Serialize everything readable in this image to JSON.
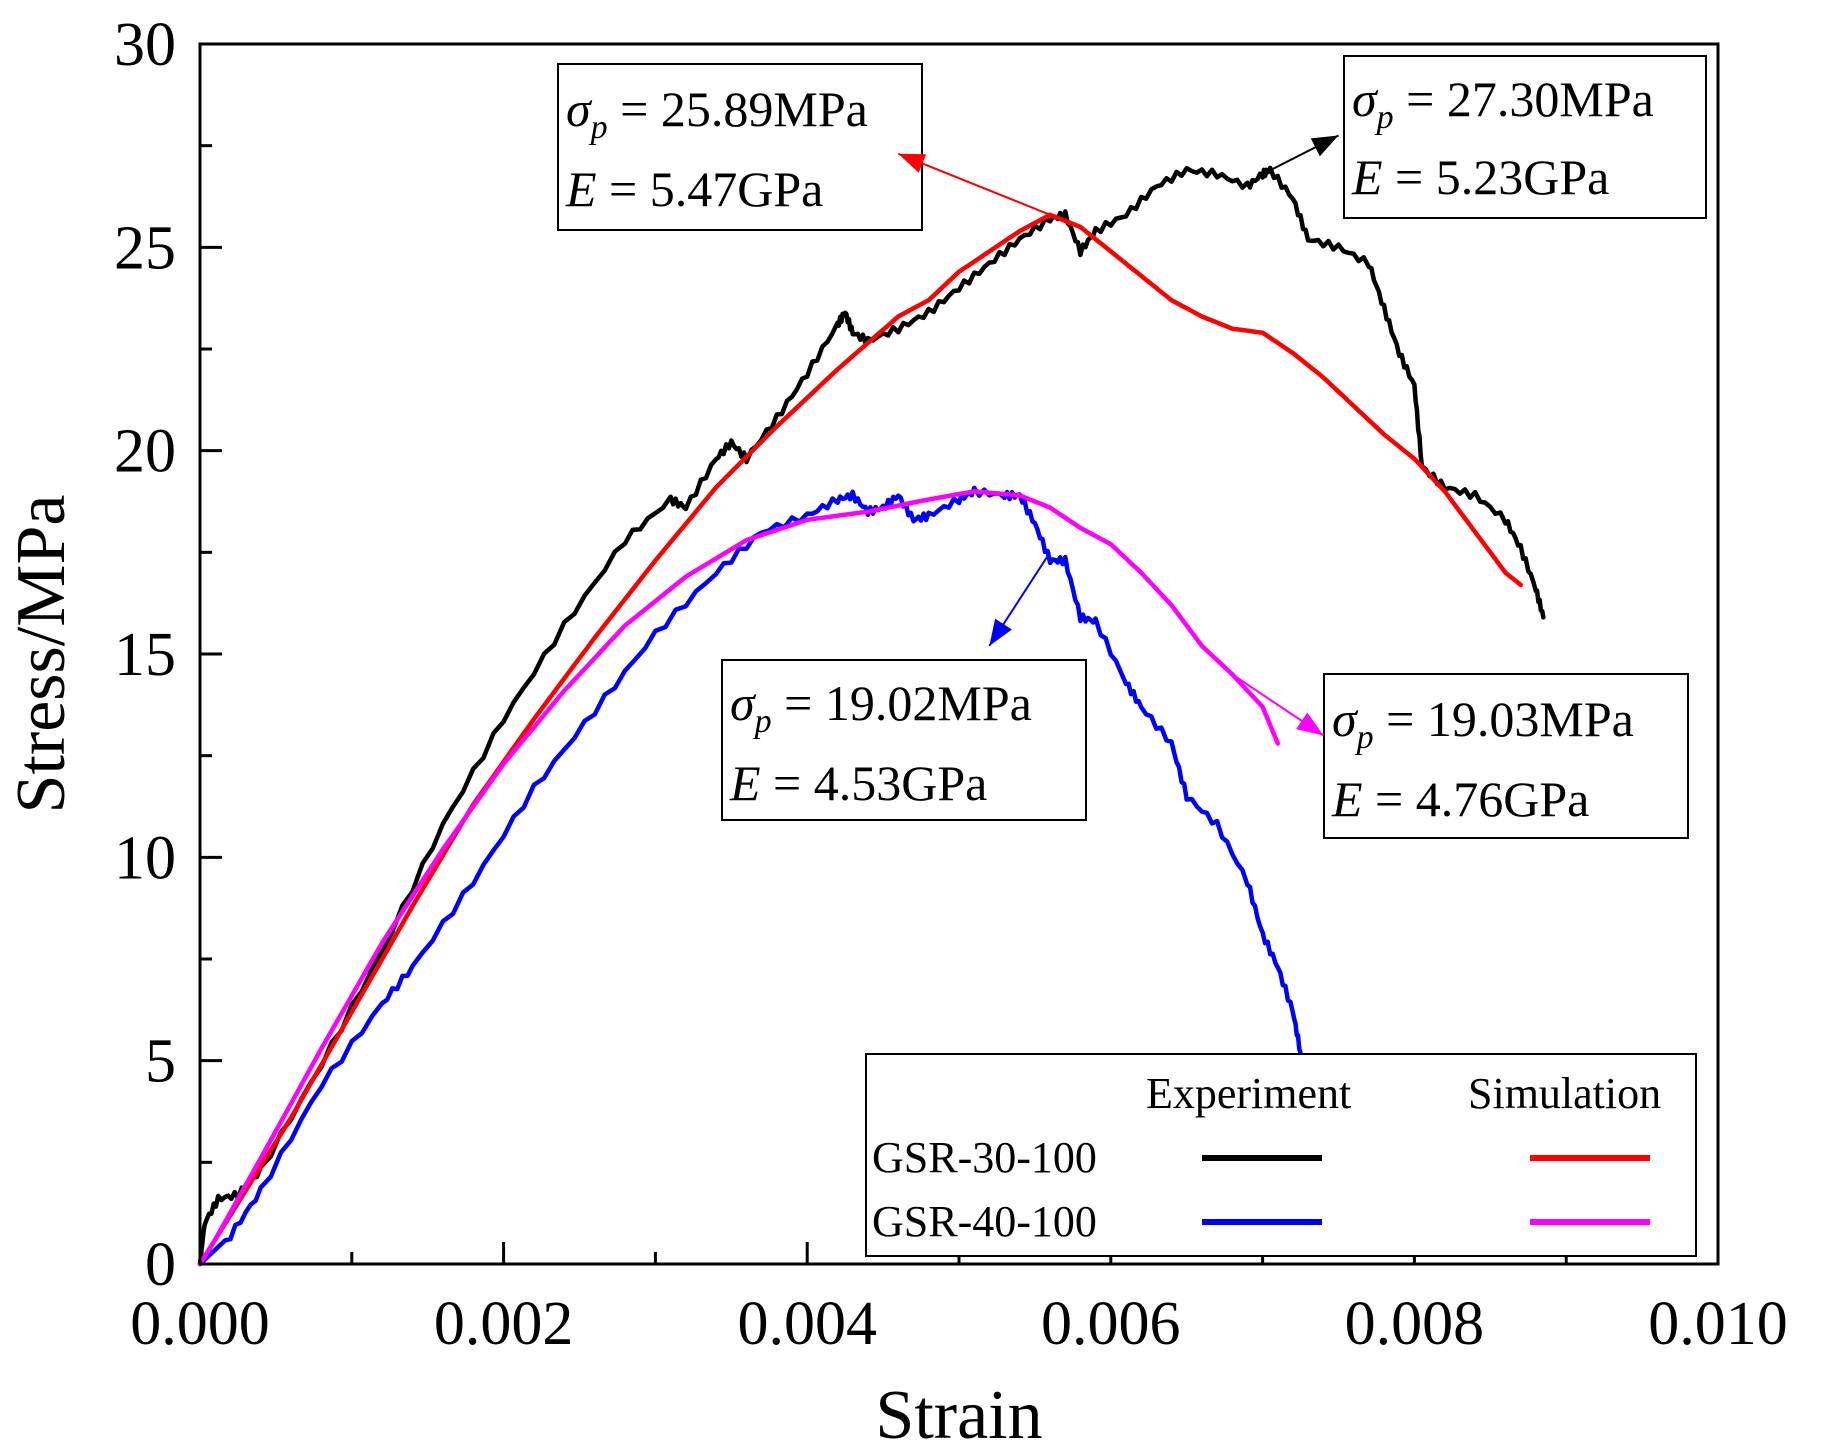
{
  "chart_data": {
    "type": "line",
    "title": "",
    "xlabel": "Strain",
    "ylabel": "Stress/MPa",
    "xlim": [
      0,
      0.01
    ],
    "ylim": [
      0,
      30
    ],
    "x_ticks": [
      "0.000",
      "0.002",
      "0.004",
      "0.006",
      "0.008",
      "0.010"
    ],
    "y_ticks": [
      "0",
      "5",
      "10",
      "15",
      "20",
      "25",
      "30"
    ],
    "colors": {
      "black": "#000000",
      "red": "#ff0000",
      "blue": "#0000ff",
      "magenta": "#ff00ff"
    },
    "series": [
      {
        "name": "GSR-30-100 Experiment",
        "color": "#000000",
        "points": [
          [
            0,
            0
          ],
          [
            3e-05,
            1.0
          ],
          [
            0.00012,
            1.6
          ],
          [
            0.00025,
            1.7
          ],
          [
            0.0004,
            2.3
          ],
          [
            0.0008,
            4.9
          ],
          [
            0.0012,
            7.7
          ],
          [
            0.0016,
            10.8
          ],
          [
            0.002,
            13.4
          ],
          [
            0.0024,
            15.7
          ],
          [
            0.0028,
            17.8
          ],
          [
            0.0031,
            18.8
          ],
          [
            0.0032,
            18.6
          ],
          [
            0.0034,
            19.8
          ],
          [
            0.0035,
            20.2
          ],
          [
            0.0036,
            19.8
          ],
          [
            0.0038,
            20.8
          ],
          [
            0.004,
            21.9
          ],
          [
            0.0042,
            23.1
          ],
          [
            0.00425,
            23.4
          ],
          [
            0.0043,
            22.9
          ],
          [
            0.0044,
            22.7
          ],
          [
            0.0046,
            23.0
          ],
          [
            0.0048,
            23.4
          ],
          [
            0.005,
            24.0
          ],
          [
            0.0052,
            24.6
          ],
          [
            0.0054,
            25.2
          ],
          [
            0.0056,
            25.7
          ],
          [
            0.0057,
            25.8
          ],
          [
            0.0058,
            24.9
          ],
          [
            0.0059,
            25.4
          ],
          [
            0.0061,
            25.8
          ],
          [
            0.0063,
            26.5
          ],
          [
            0.0065,
            26.9
          ],
          [
            0.0067,
            26.8
          ],
          [
            0.0069,
            26.5
          ],
          [
            0.007,
            26.8
          ],
          [
            0.00705,
            26.9
          ],
          [
            0.0072,
            26.2
          ],
          [
            0.0073,
            25.2
          ],
          [
            0.0075,
            25.0
          ],
          [
            0.0077,
            24.6
          ],
          [
            0.0078,
            23.5
          ],
          [
            0.0079,
            22.4
          ],
          [
            0.008,
            21.6
          ],
          [
            0.00805,
            19.6
          ],
          [
            0.0082,
            19.1
          ],
          [
            0.0084,
            18.9
          ],
          [
            0.0086,
            18.3
          ],
          [
            0.0087,
            17.6
          ],
          [
            0.0088,
            16.6
          ],
          [
            0.00885,
            15.9
          ]
        ]
      },
      {
        "name": "GSR-40-100 Experiment",
        "color": "#0000ff",
        "points": [
          [
            0,
            0
          ],
          [
            0.0002,
            0.7
          ],
          [
            0.0004,
            1.8
          ],
          [
            0.0008,
            4.4
          ],
          [
            0.0012,
            6.4
          ],
          [
            0.0014,
            7.3
          ],
          [
            0.0018,
            9.4
          ],
          [
            0.0022,
            11.7
          ],
          [
            0.0026,
            13.6
          ],
          [
            0.003,
            15.5
          ],
          [
            0.0034,
            17.0
          ],
          [
            0.0037,
            18.0
          ],
          [
            0.004,
            18.4
          ],
          [
            0.0042,
            18.8
          ],
          [
            0.0043,
            18.9
          ],
          [
            0.0044,
            18.5
          ],
          [
            0.0045,
            18.6
          ],
          [
            0.0046,
            18.9
          ],
          [
            0.0047,
            18.3
          ],
          [
            0.0048,
            18.4
          ],
          [
            0.005,
            18.8
          ],
          [
            0.0051,
            19.0
          ],
          [
            0.0053,
            18.9
          ],
          [
            0.0054,
            18.9
          ],
          [
            0.0055,
            18.2
          ],
          [
            0.0056,
            17.3
          ],
          [
            0.0057,
            17.3
          ],
          [
            0.0058,
            15.9
          ],
          [
            0.0059,
            15.8
          ],
          [
            0.0061,
            14.3
          ],
          [
            0.0062,
            13.7
          ],
          [
            0.0064,
            12.8
          ],
          [
            0.0065,
            11.5
          ],
          [
            0.0067,
            10.8
          ],
          [
            0.0069,
            9.4
          ],
          [
            0.007,
            8.1
          ],
          [
            0.0071,
            7.3
          ],
          [
            0.0072,
            6.2
          ],
          [
            0.00725,
            5.2
          ]
        ]
      },
      {
        "name": "GSR-30-100 Simulation",
        "color": "#ff0000",
        "points": [
          [
            0,
            0
          ],
          [
            0.0002,
            1.2
          ],
          [
            0.0006,
            3.6
          ],
          [
            0.001,
            6.2
          ],
          [
            0.0014,
            8.8
          ],
          [
            0.0018,
            11.3
          ],
          [
            0.0022,
            13.4
          ],
          [
            0.0026,
            15.4
          ],
          [
            0.003,
            17.3
          ],
          [
            0.0034,
            19.1
          ],
          [
            0.0038,
            20.6
          ],
          [
            0.0042,
            22.0
          ],
          [
            0.0046,
            23.3
          ],
          [
            0.0048,
            23.7
          ],
          [
            0.005,
            24.4
          ],
          [
            0.0052,
            24.9
          ],
          [
            0.0054,
            25.4
          ],
          [
            0.0056,
            25.8
          ],
          [
            0.0058,
            25.5
          ],
          [
            0.006,
            24.9
          ],
          [
            0.0062,
            24.3
          ],
          [
            0.0064,
            23.7
          ],
          [
            0.0066,
            23.3
          ],
          [
            0.0068,
            23.0
          ],
          [
            0.007,
            22.9
          ],
          [
            0.0072,
            22.4
          ],
          [
            0.0074,
            21.8
          ],
          [
            0.0076,
            21.1
          ],
          [
            0.0078,
            20.4
          ],
          [
            0.008,
            19.8
          ],
          [
            0.0082,
            19.0
          ],
          [
            0.0084,
            18.0
          ],
          [
            0.0086,
            17.0
          ],
          [
            0.0087,
            16.7
          ]
        ]
      },
      {
        "name": "GSR-40-100 Simulation",
        "color": "#ff00ff",
        "points": [
          [
            0,
            0
          ],
          [
            0.0001,
            0.6
          ],
          [
            0.0004,
            2.6
          ],
          [
            0.0008,
            5.3
          ],
          [
            0.0012,
            7.9
          ],
          [
            0.0016,
            10.2
          ],
          [
            0.002,
            12.3
          ],
          [
            0.0024,
            14.1
          ],
          [
            0.0028,
            15.7
          ],
          [
            0.0032,
            16.9
          ],
          [
            0.0036,
            17.8
          ],
          [
            0.004,
            18.3
          ],
          [
            0.0044,
            18.5
          ],
          [
            0.0048,
            18.8
          ],
          [
            0.0051,
            19.0
          ],
          [
            0.0054,
            18.9
          ],
          [
            0.0056,
            18.6
          ],
          [
            0.0058,
            18.1
          ],
          [
            0.006,
            17.7
          ],
          [
            0.0062,
            17.0
          ],
          [
            0.0064,
            16.2
          ],
          [
            0.0066,
            15.2
          ],
          [
            0.0068,
            14.5
          ],
          [
            0.007,
            13.7
          ],
          [
            0.0071,
            12.8
          ]
        ]
      }
    ],
    "annotations": [
      {
        "label": "25.89MPa",
        "e_label": "5.47GPa",
        "color": "#ff0000",
        "point": [
          0.0056,
          25.8
        ],
        "arrow_to": [
          0.0046,
          27.3
        ]
      },
      {
        "label": "27.30MPa",
        "e_label": "5.23GPa",
        "color": "#000000",
        "point": [
          0.007,
          26.8
        ],
        "arrow_to": [
          0.0075,
          27.75
        ]
      },
      {
        "label": "19.02MPa",
        "e_label": "4.53GPa",
        "color": "#0000ff",
        "point": [
          0.0056,
          17.5
        ],
        "arrow_to": [
          0.0052,
          15.2
        ]
      },
      {
        "label": "19.03MPa",
        "e_label": "4.76GPa",
        "color": "#ff00ff",
        "point": [
          0.0068,
          14.5
        ],
        "arrow_to": [
          0.0074,
          13.0
        ]
      }
    ],
    "legend": {
      "position": "bottom-right",
      "col_experiment": "Experiment",
      "col_simulation": "Simulation",
      "rows": [
        {
          "label": "GSR-30-100",
          "exp_color": "#000000",
          "sim_color": "#ff0000"
        },
        {
          "label": "GSR-40-100",
          "exp_color": "#0000ff",
          "sim_color": "#ff00ff"
        }
      ]
    }
  }
}
